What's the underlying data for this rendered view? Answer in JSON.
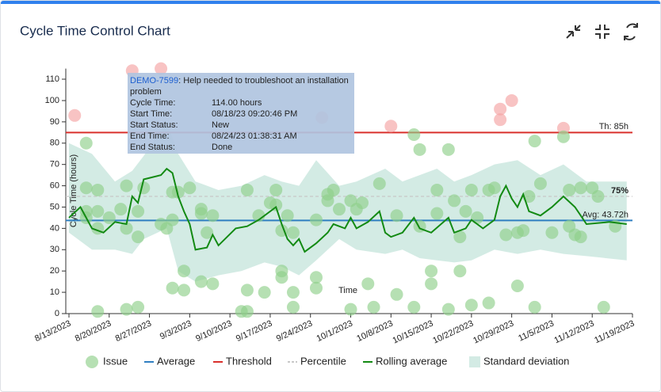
{
  "chart_data": {
    "type": "scatter",
    "title": "Cycle Time Control Chart",
    "x_label": "Time",
    "y_label": "Cycle Time (hours)",
    "xlim": [
      "8/13/2023",
      "11/19/2023"
    ],
    "xticks": [
      "8/13/2023",
      "8/20/2023",
      "8/27/2023",
      "9/3/2023",
      "9/10/2023",
      "9/17/2023",
      "9/24/2023",
      "10/1/2023",
      "10/8/2023",
      "10/15/2023",
      "10/22/2023",
      "10/29/2023",
      "11/5/2023",
      "11/12/2023",
      "11/19/2023"
    ],
    "ylim": [
      0,
      115
    ],
    "yticks": [
      0,
      10,
      20,
      30,
      40,
      50,
      60,
      70,
      80,
      90,
      100,
      110
    ],
    "above_threshold_color": "#f4a3a3",
    "series": [
      {
        "name": "Issue",
        "color": "#8fd08a",
        "x": [
          "8/14/2023",
          "8/16/2023",
          "8/16/2023",
          "8/16/2023",
          "8/16/2023",
          "8/18/2023",
          "8/18/2023",
          "8/18/2023",
          "8/18/2023",
          "8/20/2023",
          "8/22/2023",
          "8/23/2023",
          "8/23/2023",
          "8/23/2023",
          "8/24/2023",
          "8/25/2023",
          "8/25/2023",
          "8/25/2023",
          "8/26/2023",
          "8/29/2023",
          "8/29/2023",
          "8/30/2023",
          "8/31/2023",
          "8/31/2023",
          "8/31/2023",
          "9/1/2023",
          "9/2/2023",
          "9/2/2023",
          "9/3/2023",
          "9/5/2023",
          "9/5/2023",
          "9/5/2023",
          "9/6/2023",
          "9/7/2023",
          "9/7/2023",
          "9/12/2023",
          "9/13/2023",
          "9/13/2023",
          "9/13/2023",
          "9/15/2023",
          "9/16/2023",
          "9/17/2023",
          "9/18/2023",
          "9/18/2023",
          "9/19/2023",
          "9/19/2023",
          "9/19/2023",
          "9/20/2023",
          "9/21/2023",
          "9/21/2023",
          "9/21/2023",
          "9/25/2023",
          "9/25/2023",
          "9/25/2023",
          "9/26/2023",
          "9/27/2023",
          "9/27/2023",
          "9/28/2023",
          "9/29/2023",
          "10/1/2023",
          "10/1/2023",
          "10/2/2023",
          "10/3/2023",
          "10/4/2023",
          "10/5/2023",
          "10/6/2023",
          "10/8/2023",
          "10/9/2023",
          "10/9/2023",
          "10/12/2023",
          "10/12/2023",
          "10/13/2023",
          "10/13/2023",
          "10/15/2023",
          "10/15/2023",
          "10/16/2023",
          "10/16/2023",
          "10/18/2023",
          "10/18/2023",
          "10/19/2023",
          "10/20/2023",
          "10/20/2023",
          "10/21/2023",
          "10/22/2023",
          "10/22/2023",
          "10/23/2023",
          "10/25/2023",
          "10/25/2023",
          "10/26/2023",
          "10/27/2023",
          "10/27/2023",
          "10/28/2023",
          "10/29/2023",
          "10/30/2023",
          "10/30/2023",
          "10/31/2023",
          "11/1/2023",
          "11/2/2023",
          "11/2/2023",
          "11/3/2023",
          "11/5/2023",
          "11/7/2023",
          "11/7/2023",
          "11/8/2023",
          "11/8/2023",
          "11/9/2023",
          "11/10/2023",
          "11/10/2023",
          "11/12/2023",
          "11/13/2023",
          "11/14/2023",
          "11/16/2023"
        ],
        "values": [
          93,
          80,
          59,
          48,
          45,
          1,
          58,
          48,
          40,
          45,
          49,
          2,
          60,
          40,
          114,
          3,
          48,
          36,
          59,
          115,
          42,
          40,
          57,
          12,
          44,
          57,
          11,
          20,
          59,
          49,
          15,
          47,
          38,
          14,
          46,
          1,
          1,
          11,
          58,
          46,
          10,
          52,
          51,
          58,
          20,
          17,
          39,
          46,
          10,
          38,
          3,
          12,
          17,
          44,
          92,
          56,
          53,
          58,
          49,
          53,
          2,
          49,
          52,
          14,
          3,
          61,
          88,
          9,
          46,
          84,
          3,
          77,
          41,
          20,
          14,
          58,
          47,
          77,
          2,
          53,
          20,
          36,
          48,
          58,
          4,
          45,
          5,
          58,
          59,
          96,
          91,
          37,
          100,
          13,
          38,
          39,
          55,
          3,
          81,
          61,
          38,
          87,
          83,
          41,
          58,
          37,
          36,
          59,
          59,
          55,
          3,
          41
        ]
      },
      {
        "name": "Rolling average",
        "color": "#138a13",
        "x": [
          "8/13/2023",
          "8/15/2023",
          "8/17/2023",
          "8/19/2023",
          "8/21/2023",
          "8/23/2023",
          "8/24/2023",
          "8/25/2023",
          "8/26/2023",
          "8/29/2023",
          "8/30/2023",
          "8/31/2023",
          "9/1/2023",
          "9/2/2023",
          "9/3/2023",
          "9/4/2023",
          "9/6/2023",
          "9/7/2023",
          "9/8/2023",
          "9/11/2023",
          "9/13/2023",
          "9/15/2023",
          "9/18/2023",
          "9/19/2023",
          "9/20/2023",
          "9/21/2023",
          "9/22/2023",
          "9/23/2023",
          "9/25/2023",
          "9/27/2023",
          "9/28/2023",
          "9/30/2023",
          "10/1/2023",
          "10/2/2023",
          "10/4/2023",
          "10/6/2023",
          "10/7/2023",
          "10/8/2023",
          "10/10/2023",
          "10/12/2023",
          "10/13/2023",
          "10/15/2023",
          "10/18/2023",
          "10/19/2023",
          "10/21/2023",
          "10/22/2023",
          "10/24/2023",
          "10/26/2023",
          "10/27/2023",
          "10/28/2023",
          "10/29/2023",
          "10/30/2023",
          "10/31/2023",
          "11/1/2023",
          "11/3/2023",
          "11/5/2023",
          "11/7/2023",
          "11/9/2023",
          "11/10/2023",
          "11/11/2023",
          "11/15/2023",
          "11/18/2023"
        ],
        "values": [
          45,
          50,
          40,
          38,
          43,
          42,
          55,
          52,
          63,
          65,
          68,
          66,
          55,
          48,
          42,
          30,
          31,
          37,
          32,
          40,
          41,
          44,
          50,
          42,
          35,
          32,
          35,
          29,
          33,
          38,
          42,
          40,
          45,
          40,
          43,
          48,
          38,
          36,
          38,
          45,
          40,
          38,
          45,
          38,
          40,
          44,
          40,
          44,
          55,
          60,
          54,
          50,
          56,
          48,
          46,
          50,
          55,
          50,
          46,
          42,
          43,
          42
        ]
      },
      {
        "name": "Standard deviation",
        "color": "#d3ebe4",
        "x": [
          "8/13/2023",
          "8/17/2023",
          "8/21/2023",
          "8/24/2023",
          "8/26/2023",
          "8/30/2023",
          "9/1/2023",
          "9/4/2023",
          "9/8/2023",
          "9/12/2023",
          "9/16/2023",
          "9/19/2023",
          "9/22/2023",
          "9/25/2023",
          "9/29/2023",
          "10/2/2023",
          "10/7/2023",
          "10/10/2023",
          "10/13/2023",
          "10/16/2023",
          "10/19/2023",
          "10/22/2023",
          "10/26/2023",
          "10/30/2023",
          "11/3/2023",
          "11/7/2023",
          "11/11/2023",
          "11/18/2023"
        ],
        "upper": [
          80,
          75,
          62,
          67,
          74,
          90,
          75,
          62,
          58,
          60,
          65,
          62,
          60,
          72,
          60,
          62,
          68,
          62,
          65,
          68,
          62,
          65,
          70,
          72,
          65,
          70,
          62,
          62
        ],
        "lower": [
          38,
          30,
          30,
          28,
          35,
          40,
          20,
          15,
          18,
          20,
          24,
          22,
          18,
          25,
          35,
          30,
          28,
          30,
          26,
          25,
          24,
          25,
          30,
          28,
          30,
          28,
          27,
          25
        ]
      }
    ],
    "reference_lines": [
      {
        "name": "Average",
        "value": 43.72,
        "label": "Avg: 43.72h",
        "color": "#2f7fc1"
      },
      {
        "name": "Threshold",
        "value": 85,
        "label": "Th: 85h",
        "color": "#d9302c"
      },
      {
        "name": "Percentile",
        "value": 55,
        "label": "75%",
        "color": "#c8c8c8"
      }
    ],
    "tooltip": {
      "key": "DEMO-7599",
      "summary": ": Help needed to troubleshoot an installation problem",
      "rows": [
        {
          "label": "Cycle Time:",
          "value": "114.00 hours"
        },
        {
          "label": "Start Time:",
          "value": "08/18/23 09:20:46 PM"
        },
        {
          "label": "Start Status:",
          "value": "New"
        },
        {
          "label": "End Time:",
          "value": "08/24/23 01:38:31 AM"
        },
        {
          "label": "End Status:",
          "value": "Done"
        }
      ]
    }
  }
}
